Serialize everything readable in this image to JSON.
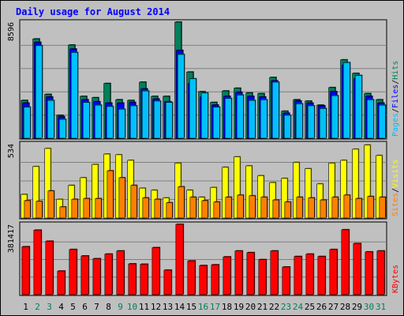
{
  "chart_data": {
    "type": "bar",
    "title": "Daily usage for August 2014",
    "colors": {
      "hits": "#00805c",
      "files": "#0000ff",
      "pages": "#00c0ff",
      "visits": "#ffff00",
      "sites": "#ff8000",
      "kbytes": "#ff0000",
      "title": "#0000ff",
      "weekday_label": "#000000",
      "weekend_label": "#00805c",
      "plot_bg": "#c0c0c0",
      "frame_bg": "#bfbfbf"
    },
    "days": [
      "1",
      "2",
      "3",
      "4",
      "5",
      "6",
      "7",
      "8",
      "9",
      "10",
      "11",
      "12",
      "13",
      "14",
      "15",
      "16",
      "17",
      "18",
      "19",
      "20",
      "21",
      "22",
      "23",
      "24",
      "25",
      "26",
      "27",
      "28",
      "29",
      "30",
      "31"
    ],
    "weekend_days": [
      "2",
      "3",
      "9",
      "10",
      "16",
      "17",
      "23",
      "24",
      "30",
      "31"
    ],
    "panels": [
      {
        "id": "hits-files-pages",
        "max_label": "8596",
        "ymax": 8596,
        "side_labels": [
          {
            "text": "Hits",
            "color": "#00805c"
          },
          {
            "text": "Files",
            "color": "#0000ff"
          },
          {
            "text": "Pages",
            "color": "#00c0ff"
          }
        ],
        "separators": [
          "/",
          "/"
        ],
        "series": [
          {
            "name": "Hits",
            "color": "#00805c",
            "values": [
              2800,
              7350,
              3250,
              1700,
              6900,
              3100,
              3000,
              4050,
              2850,
              2800,
              4150,
              3100,
              3100,
              8596,
              4900,
              3450,
              2650,
              3500,
              3700,
              3350,
              3300,
              4500,
              2000,
              2850,
              2750,
              2450,
              3750,
              5800,
              4800,
              3300,
              2850
            ]
          },
          {
            "name": "Files",
            "color": "#0000ff",
            "values": [
              2600,
              7100,
              3050,
              1600,
              6600,
              2850,
              2700,
              2600,
              2600,
              2650,
              3650,
              2900,
              2700,
              6500,
              4050,
              3050,
              2450,
              3100,
              3400,
              3100,
              3050,
              4250,
              1850,
              2750,
              2600,
              2400,
              3450,
              5400,
              4400,
              3100,
              2600
            ]
          },
          {
            "name": "Pages",
            "color": "#00c0ff",
            "values": [
              2300,
              6850,
              2800,
              1400,
              6350,
              2650,
              2450,
              2350,
              2150,
              2400,
              3500,
              2750,
              2650,
              6200,
              4400,
              3350,
              2300,
              2950,
              3200,
              2800,
              2850,
              4150,
              1700,
              2550,
              2400,
              2200,
              3150,
              5600,
              4650,
              2850,
              2450
            ]
          }
        ]
      },
      {
        "id": "visits-sites",
        "max_label": "534",
        "ymax": 534,
        "side_labels": [
          {
            "text": "Visits",
            "color": "#ffff00"
          },
          {
            "text": "Sites",
            "color": "#ff8000"
          }
        ],
        "separators": [
          "/"
        ],
        "series": [
          {
            "name": "Visits",
            "color": "#ffff00",
            "values": [
              170,
              370,
              500,
              135,
              235,
              290,
              385,
              460,
              455,
              415,
              215,
              200,
              145,
              395,
              200,
              150,
              220,
              365,
              440,
              375,
              305,
              255,
              285,
              400,
              355,
              245,
              395,
              415,
              495,
              525,
              450
            ]
          },
          {
            "name": "Sites",
            "color": "#ff8000",
            "values": [
              125,
              120,
              195,
              80,
              135,
              140,
              140,
              340,
              290,
              235,
              145,
              135,
              110,
              225,
              150,
              125,
              115,
              150,
              165,
              160,
              150,
              130,
              115,
              150,
              145,
              130,
              150,
              165,
              140,
              155,
              150
            ]
          }
        ]
      },
      {
        "id": "kbytes",
        "max_label": "381417",
        "ymax": 381417,
        "side_labels": [
          {
            "text": "KBytes",
            "color": "#ff0000"
          }
        ],
        "separators": [],
        "series": [
          {
            "name": "KBytes",
            "color": "#ff0000",
            "values": [
              260000,
              350000,
              290000,
              128000,
              245000,
              210000,
              195000,
              220000,
              237000,
              167000,
              165000,
              255000,
              133000,
              381417,
              183000,
              158000,
              162000,
              205000,
              237000,
              228000,
              190000,
              237000,
              150000,
              207000,
              220000,
              207000,
              245000,
              352000,
              277000,
              232000,
              237000
            ]
          }
        ]
      }
    ]
  }
}
